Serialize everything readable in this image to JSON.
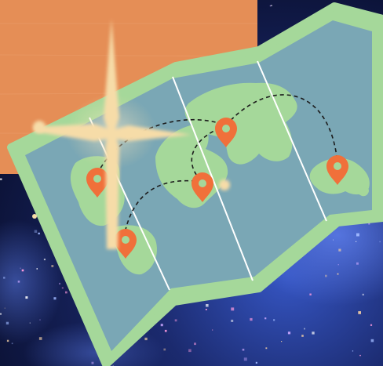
{
  "colors": {
    "space_deep": "#1b2a6e",
    "space_dark": "#0c1338",
    "space_glow": "#3c59c8",
    "orange_block": "#e58e56",
    "map_border": "#a5d89a",
    "map_water": "#7aa7b5",
    "land": "#a5d89a",
    "fold_line": "#ffffff",
    "route": "#1c1c1c",
    "pin": "#f0703a",
    "pin_inner": "#a5d89a",
    "sparkle": "#f6dca8"
  },
  "icons": {
    "pin": "map-pin-icon",
    "sparkle": "sparkle-icon"
  },
  "map": {
    "panel_count": 4,
    "pin_count": 5
  }
}
